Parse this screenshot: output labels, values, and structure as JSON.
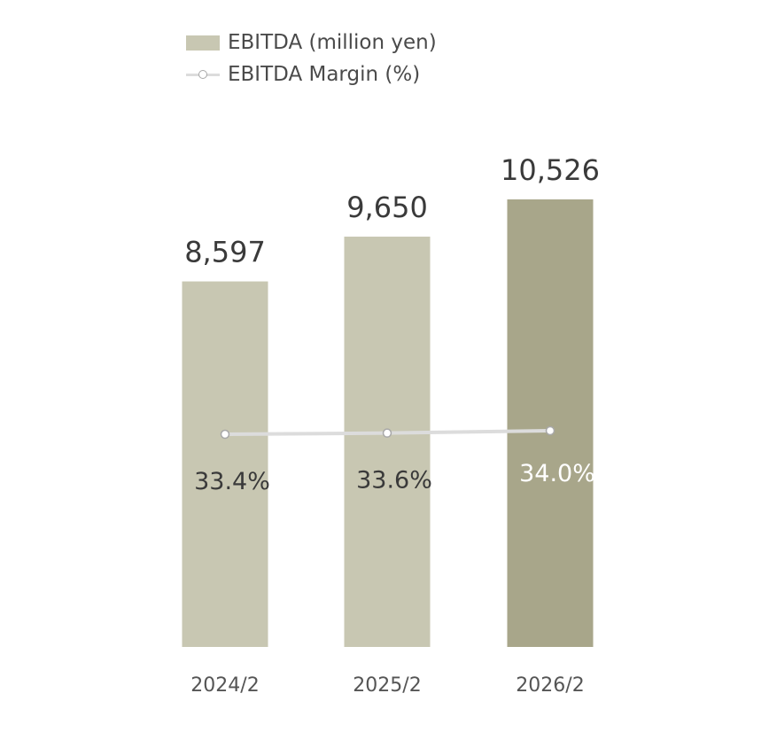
{
  "legend": {
    "bar_label": "EBITDA (million yen)",
    "line_label": "EBITDA Margin (%)"
  },
  "colors": {
    "bar_light": "#c8c7b2",
    "bar_dark": "#a8a68a",
    "line": "#dcdcdc",
    "text": "#3a3a3a",
    "axis_text": "#555555",
    "margin_label_light": "#ffffff"
  },
  "chart_data": {
    "type": "bar",
    "categories": [
      "2024/2",
      "2025/2",
      "2026/2"
    ],
    "series": [
      {
        "name": "EBITDA (million yen)",
        "type": "bar",
        "values": [
          8597,
          9650,
          10526
        ],
        "labels": [
          "8,597",
          "9,650",
          "10,526"
        ],
        "highlight": [
          false,
          false,
          true
        ]
      },
      {
        "name": "EBITDA Margin (%)",
        "type": "line",
        "values": [
          33.4,
          33.6,
          34.0
        ],
        "labels": [
          "33.4%",
          "33.6%",
          "34.0%"
        ]
      }
    ],
    "ylim": [
      0,
      10526
    ],
    "grid": false,
    "legend_position": "top-left"
  }
}
